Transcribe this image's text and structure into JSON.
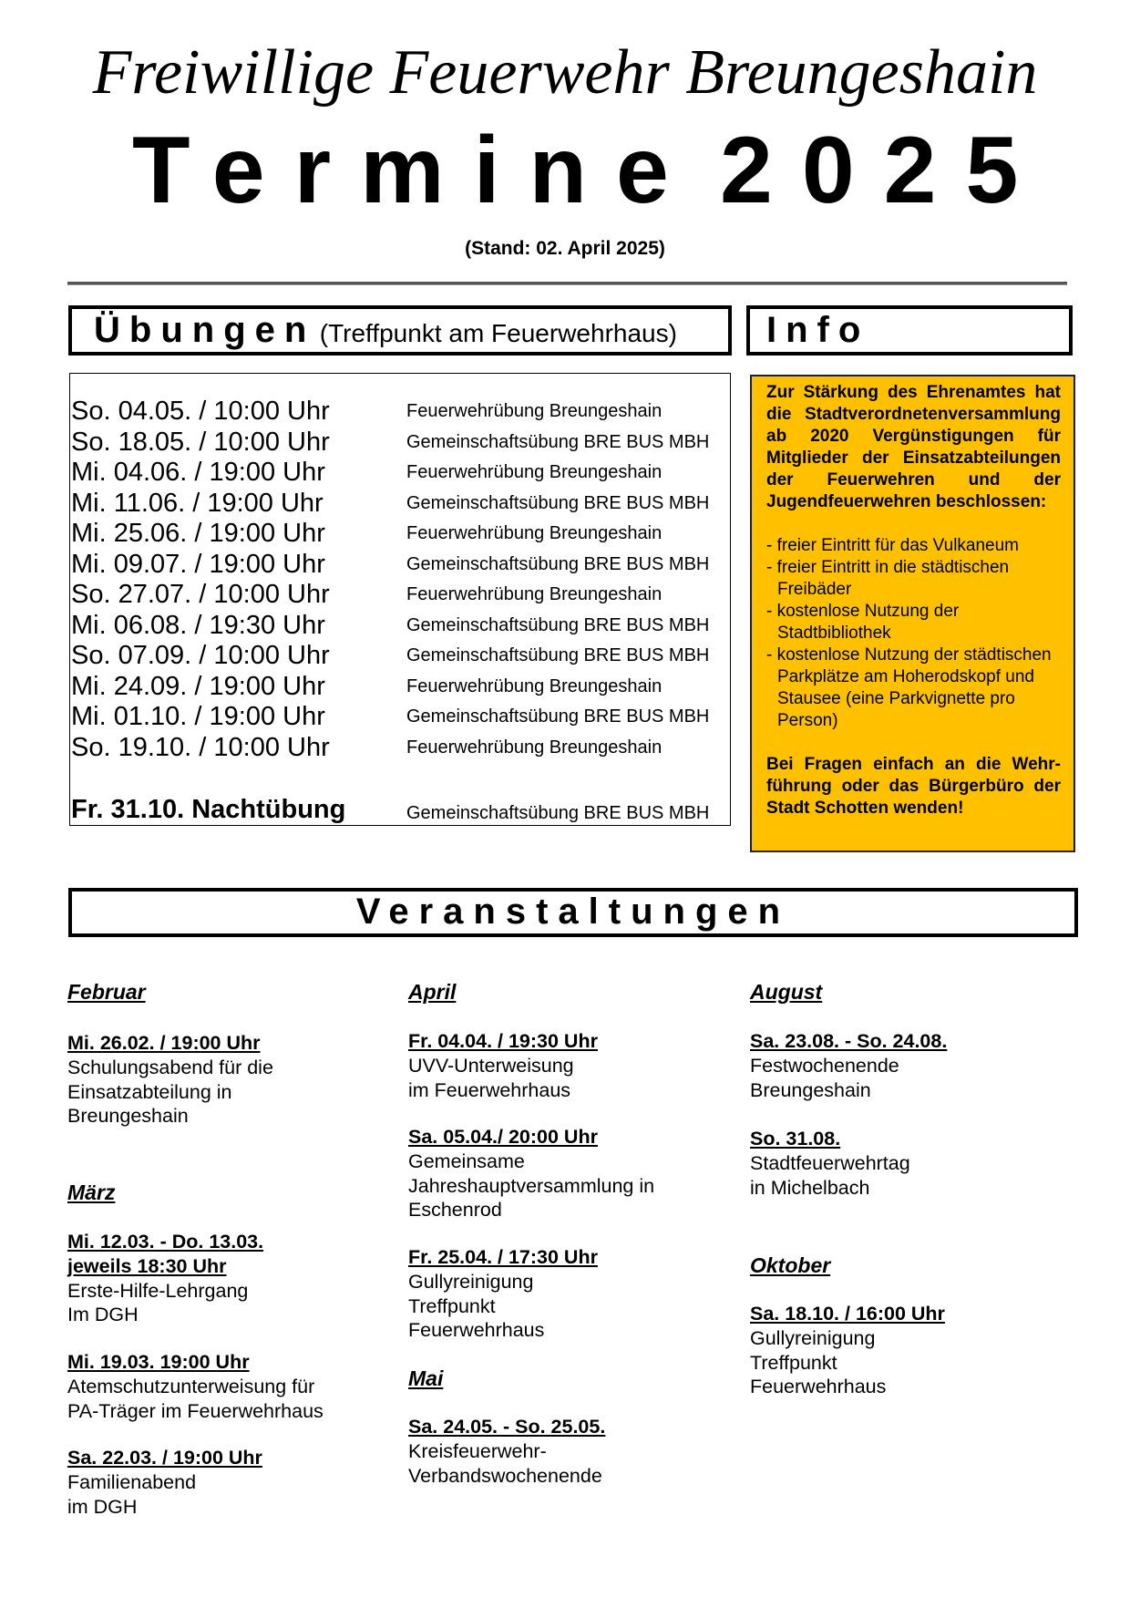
{
  "header": {
    "org": "Freiwillige Feuerwehr Breungeshain",
    "title_word": "Termine",
    "year": "2025",
    "stand": "(Stand: 02. April 2025)"
  },
  "uebungen": {
    "title": "Übungen",
    "subtitle": "(Treffpunkt am Feuerwehrhaus)",
    "rows": [
      {
        "date": "So. 04.05. / 10:00 Uhr",
        "event": "Feuerwehrübung Breungeshain"
      },
      {
        "date": "So. 18.05. / 10:00 Uhr",
        "event": "Gemeinschaftsübung BRE BUS MBH"
      },
      {
        "date": "Mi. 04.06. / 19:00 Uhr",
        "event": "Feuerwehrübung Breungeshain"
      },
      {
        "date": "Mi. 11.06. / 19:00 Uhr",
        "event": "Gemeinschaftsübung BRE BUS MBH"
      },
      {
        "date": "Mi. 25.06. / 19:00 Uhr",
        "event": "Feuerwehrübung Breungeshain"
      },
      {
        "date": "Mi. 09.07. / 19:00 Uhr",
        "event": "Gemeinschaftsübung BRE BUS MBH"
      },
      {
        "date": "So. 27.07. / 10:00 Uhr",
        "event": "Feuerwehrübung Breungeshain"
      },
      {
        "date": "Mi. 06.08. / 19:30 Uhr",
        "event": "Gemeinschaftsübung BRE BUS MBH"
      },
      {
        "date": "So. 07.09. / 10:00 Uhr",
        "event": "Gemeinschaftsübung BRE BUS MBH"
      },
      {
        "date": "Mi. 24.09. / 19:00 Uhr",
        "event": "Feuerwehrübung Breungeshain"
      },
      {
        "date": "Mi. 01.10. / 19:00 Uhr",
        "event": "Gemeinschaftsübung BRE BUS MBH"
      },
      {
        "date": "So. 19.10. / 10:00 Uhr",
        "event": "Feuerwehrübung Breungeshain"
      }
    ],
    "night": {
      "date": "Fr. 31.10. Nachtübung",
      "event": "Gemeinschaftsübung BRE BUS MBH"
    }
  },
  "info": {
    "title": "Info",
    "intro": "Zur Stärkung des Ehrenamtes hat die Stadtverordnetenver­sammlung ab 2020 Vergünsti­gungen für Mitglieder der Ein­satzabteilungen der Feuerweh­ren und der Jugendfeuerwehren beschlossen:",
    "items": [
      "- freier Eintritt für das Vulkaneum",
      "- freier Eintritt in die städtischen Freibäder",
      "- kostenlose Nutzung der Stadtbibliothek",
      "- kostenlose Nutzung der städtischen Parkplätze am Hoherodskopf und Stausee (eine Parkvignette pro Person)"
    ],
    "outro": "Bei Fragen einfach an die Wehr­führung oder das Bürgerbüro der Stadt Schotten wenden!",
    "bg_color": "#FFC000"
  },
  "veranstaltungen": {
    "title": "Veranstaltungen",
    "months": [
      {
        "name": "Februar",
        "events": [
          {
            "date": "Mi. 26.02. / 19:00 Uhr",
            "text": "Schulungsabend für die Einsatzabteilung in Breungeshain"
          }
        ]
      },
      {
        "name": "März",
        "events": [
          {
            "date": "Mi. 12.03. - Do. 13.03.",
            "date2": "jeweils 18:30 Uhr",
            "text": "Erste-Hilfe-Lehrgang Im DGH"
          },
          {
            "date": "Mi. 19.03. 19:00 Uhr",
            "text": "Atemschutzunterweisung für PA-Träger im Feuerwehrhaus"
          },
          {
            "date": "Sa. 22.03. / 19:00 Uhr",
            "text": "Familienabend im DGH"
          }
        ]
      },
      {
        "name": "April",
        "events": [
          {
            "date": "Fr. 04.04. / 19:30 Uhr",
            "text": "UVV-Unterweisung im Feuerwehrhaus"
          },
          {
            "date": "Sa. 05.04./ 20:00 Uhr",
            "text": "Gemeinsame Jahreshauptversammlung in Eschenrod"
          },
          {
            "date": "Fr. 25.04. / 17:30 Uhr",
            "text": "Gullyreinigung Treffpunkt Feuerwehrhaus"
          }
        ]
      },
      {
        "name": "Mai",
        "events": [
          {
            "date": "Sa. 24.05. - So. 25.05.",
            "text": "Kreisfeuerwehr- Verbandswochenende"
          }
        ]
      },
      {
        "name": "August",
        "events": [
          {
            "date": "Sa. 23.08. - So. 24.08.",
            "text": "Festwochenende Breungeshain"
          },
          {
            "date": "So. 31.08.",
            "text": "Stadtfeuerwehrtag in Michelbach"
          }
        ]
      },
      {
        "name": "Oktober",
        "events": [
          {
            "date": "Sa. 18.10. / 16:00 Uhr",
            "text": "Gullyreinigung Treffpunkt Feuerwehrhaus"
          }
        ]
      }
    ]
  }
}
